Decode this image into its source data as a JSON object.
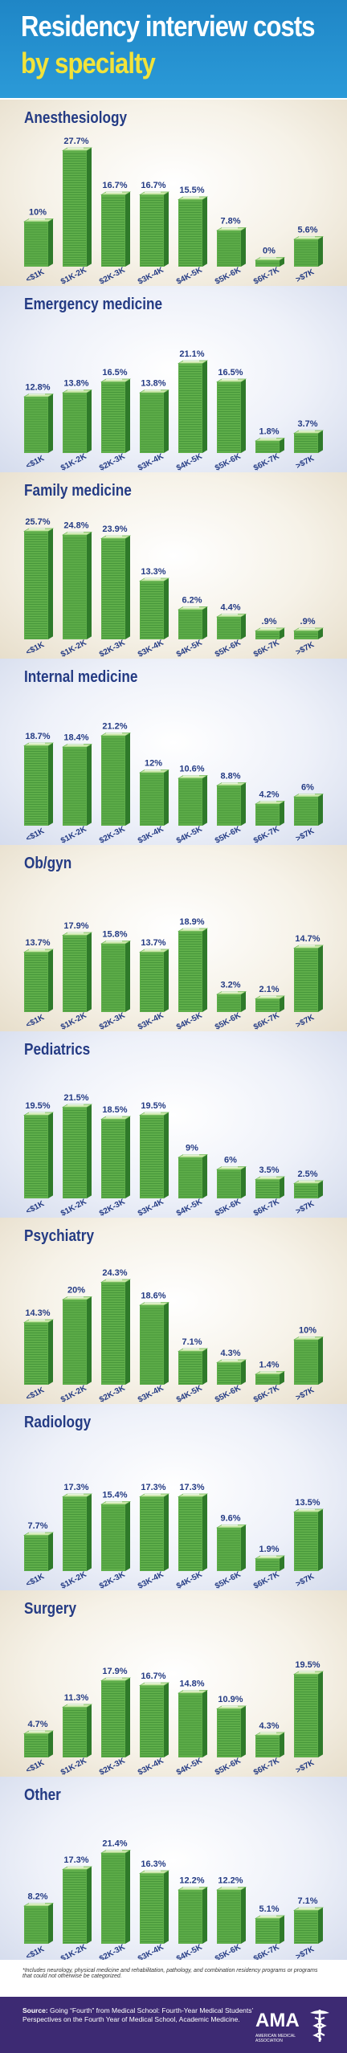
{
  "header": {
    "title_line1": "Residency interview costs",
    "title_line2": "by specialty"
  },
  "chart_data": [
    {
      "type": "bar",
      "title": "Anesthesiology",
      "categories": [
        "<$1K",
        "$1K-2K",
        "$2K-3K",
        "$3K-4K",
        "$4K-5K",
        "$5K-6K",
        "$6K-7K",
        ">$7K"
      ],
      "values": [
        10,
        27.7,
        16.7,
        16.7,
        15.5,
        7.8,
        0,
        5.6
      ],
      "labels": [
        "10%",
        "27.7%",
        "16.7%",
        "16.7%",
        "15.5%",
        "7.8%",
        "0%",
        "5.6%"
      ],
      "ylim": [
        0,
        30
      ]
    },
    {
      "type": "bar",
      "title": "Emergency medicine",
      "categories": [
        "<$1K",
        "$1K-2K",
        "$2K-3K",
        "$3K-4K",
        "$4K-5K",
        "$5K-6K",
        "$6K-7K",
        ">$7K"
      ],
      "values": [
        12.8,
        13.8,
        16.5,
        13.8,
        21.1,
        16.5,
        1.8,
        3.7
      ],
      "labels": [
        "12.8%",
        "13.8%",
        "16.5%",
        "13.8%",
        "21.1%",
        "16.5%",
        "1.8%",
        "3.7%"
      ],
      "ylim": [
        0,
        30
      ]
    },
    {
      "type": "bar",
      "title": "Family medicine",
      "categories": [
        "<$1K",
        "$1K-2K",
        "$2K-3K",
        "$3K-4K",
        "$4K-5K",
        "$5K-6K",
        "$6K-7K",
        ">$7K"
      ],
      "values": [
        25.7,
        24.8,
        23.9,
        13.3,
        6.2,
        4.4,
        0.9,
        0.9
      ],
      "labels": [
        "25.7%",
        "24.8%",
        "23.9%",
        "13.3%",
        "6.2%",
        "4.4%",
        ".9%",
        ".9%"
      ],
      "ylim": [
        0,
        30
      ]
    },
    {
      "type": "bar",
      "title": "Internal medicine",
      "categories": [
        "<$1K",
        "$1K-2K",
        "$2K-3K",
        "$3K-4K",
        "$4K-5K",
        "$5K-6K",
        "$6K-7K",
        ">$7K"
      ],
      "values": [
        18.7,
        18.4,
        21.2,
        12,
        10.6,
        8.8,
        4.2,
        6
      ],
      "labels": [
        "18.7%",
        "18.4%",
        "21.2%",
        "12%",
        "10.6%",
        "8.8%",
        "4.2%",
        "6%"
      ],
      "ylim": [
        0,
        30
      ]
    },
    {
      "type": "bar",
      "title": "Ob/gyn",
      "categories": [
        "<$1K",
        "$1K-2K",
        "$2K-3K",
        "$3K-4K",
        "$4K-5K",
        "$5K-6K",
        "$6K-7K",
        ">$7K"
      ],
      "values": [
        13.7,
        17.9,
        15.8,
        13.7,
        18.9,
        3.2,
        2.1,
        14.7
      ],
      "labels": [
        "13.7%",
        "17.9%",
        "15.8%",
        "13.7%",
        "18.9%",
        "3.2%",
        "2.1%",
        "14.7%"
      ],
      "ylim": [
        0,
        30
      ]
    },
    {
      "type": "bar",
      "title": "Pediatrics",
      "categories": [
        "<$1K",
        "$1K-2K",
        "$2K-3K",
        "$3K-4K",
        "$4K-5K",
        "$5K-6K",
        "$6K-7K",
        ">$7K"
      ],
      "values": [
        19.5,
        21.5,
        18.5,
        19.5,
        9,
        6,
        3.5,
        2.5
      ],
      "labels": [
        "19.5%",
        "21.5%",
        "18.5%",
        "19.5%",
        "9%",
        "6%",
        "3.5%",
        "2.5%"
      ],
      "ylim": [
        0,
        30
      ]
    },
    {
      "type": "bar",
      "title": "Psychiatry",
      "categories": [
        "<$1K",
        "$1K-2K",
        "$2K-3K",
        "$3K-4K",
        "$4K-5K",
        "$5K-6K",
        "$6K-7K",
        ">$7K"
      ],
      "values": [
        14.3,
        20,
        24.3,
        18.6,
        7.1,
        4.3,
        1.4,
        10
      ],
      "labels": [
        "14.3%",
        "20%",
        "24.3%",
        "18.6%",
        "7.1%",
        "4.3%",
        "1.4%",
        "10%"
      ],
      "ylim": [
        0,
        30
      ]
    },
    {
      "type": "bar",
      "title": "Radiology",
      "categories": [
        "<$1K",
        "$1K-2K",
        "$2K-3K",
        "$3K-4K",
        "$4K-5K",
        "$5K-6K",
        "$6K-7K",
        ">$7K"
      ],
      "values": [
        7.7,
        17.3,
        15.4,
        17.3,
        17.3,
        9.6,
        1.9,
        13.5
      ],
      "labels": [
        "7.7%",
        "17.3%",
        "15.4%",
        "17.3%",
        "17.3%",
        "9.6%",
        "1.9%",
        "13.5%"
      ],
      "ylim": [
        0,
        30
      ]
    },
    {
      "type": "bar",
      "title": "Surgery",
      "categories": [
        "<$1K",
        "$1K-2K",
        "$2K-3K",
        "$3K-4K",
        "$4K-5K",
        "$5K-6K",
        "$6K-7K",
        ">$7K"
      ],
      "values": [
        4.7,
        11.3,
        17.9,
        16.7,
        14.8,
        10.9,
        4.3,
        19.5
      ],
      "labels": [
        "4.7%",
        "11.3%",
        "17.9%",
        "16.7%",
        "14.8%",
        "10.9%",
        "4.3%",
        "19.5%"
      ],
      "ylim": [
        0,
        30
      ]
    },
    {
      "type": "bar",
      "title": "Other",
      "categories": [
        "<$1K",
        "$1K-2K",
        "$2K-3K",
        "$3K-4K",
        "$4K-5K",
        "$5K-6K",
        "$6K-7K",
        ">$7K"
      ],
      "values": [
        8.2,
        17.3,
        21.4,
        16.3,
        12.2,
        12.2,
        5.1,
        7.1
      ],
      "labels": [
        "8.2%",
        "17.3%",
        "21.4%",
        "16.3%",
        "12.2%",
        "12.2%",
        "5.1%",
        "7.1%"
      ],
      "ylim": [
        0,
        30
      ]
    }
  ],
  "footer": {
    "note": "*Includes neurology, physical medicine and rehabilitation, pathology, and combination residency programs or programs that could not otherwise be categorized.",
    "source_label": "Source:",
    "source_text": "Going “Fourth” from Medical School: Fourth-Year Medical Students’ Perspectives on the Fourth Year of Medical School, Academic Medicine.",
    "logo_word": "AMA",
    "logo_sub": "AMERICAN MEDICAL ASSOCIATION"
  },
  "colors": {
    "header_bg": "#2b9ad8",
    "title_white": "#ffffff",
    "title_yellow": "#f2e33a",
    "navy": "#243b84",
    "bill_front": "#5fae4a",
    "bill_top": "#c8e6a6",
    "bill_side": "#2f7a2a",
    "footer_purple": "#3d2a73"
  }
}
